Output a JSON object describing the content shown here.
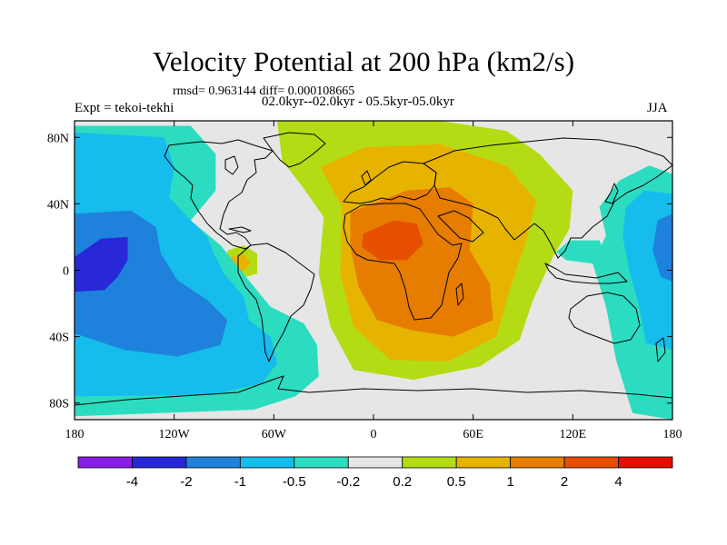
{
  "figure": {
    "title": "Velocity Potential at 200 hPa (km2/s)",
    "stats": "rmsd= 0.963144 diff= 0.000108665",
    "period": "02.0kyr--02.0kyr - 05.5kyr-05.0kyr",
    "experiment": "Expt = tekoi-tekhi",
    "season": "JJA"
  },
  "chart_data": {
    "type": "heatmap",
    "title": "Velocity Potential at 200 hPa (km2/s)",
    "units": "km2/s",
    "xlim": [
      -180,
      180
    ],
    "ylim": [
      -90,
      90
    ],
    "x_ticks": [
      {
        "value": -180,
        "label": "180"
      },
      {
        "value": -120,
        "label": "120W"
      },
      {
        "value": -60,
        "label": "60W"
      },
      {
        "value": 0,
        "label": "0"
      },
      {
        "value": 60,
        "label": "60E"
      },
      {
        "value": 120,
        "label": "120E"
      },
      {
        "value": 180,
        "label": "180"
      }
    ],
    "y_ticks": [
      {
        "value": 80,
        "label": "80N"
      },
      {
        "value": 40,
        "label": "40N"
      },
      {
        "value": 0,
        "label": "0"
      },
      {
        "value": -40,
        "label": "40S"
      },
      {
        "value": -80,
        "label": "80S"
      }
    ],
    "contour_levels": [
      -4,
      -2,
      -1,
      -0.5,
      -0.2,
      0.2,
      0.5,
      1,
      2,
      4
    ],
    "colorbar_labels": [
      "-4",
      "-2",
      "-1",
      "-0.5",
      "-0.2",
      "0.2",
      "0.5",
      "1",
      "2",
      "4"
    ],
    "colorbar_colors": [
      "#8a1de6",
      "#2828d8",
      "#1e82dc",
      "#16bcec",
      "#2cdcc0",
      "#e6e6e6",
      "#b4dc14",
      "#e6b400",
      "#e67d00",
      "#e64e00",
      "#e60e00"
    ],
    "field_regions": [
      {
        "level_bin": 5,
        "polygon": [
          [
            -180,
            90
          ],
          [
            180,
            90
          ],
          [
            180,
            -90
          ],
          [
            -180,
            -90
          ]
        ]
      },
      {
        "level_bin": 6,
        "polygon": [
          [
            -58,
            90
          ],
          [
            40,
            90
          ],
          [
            80,
            84
          ],
          [
            100,
            70
          ],
          [
            120,
            48
          ],
          [
            118,
            25
          ],
          [
            108,
            8
          ],
          [
            96,
            -18
          ],
          [
            88,
            -42
          ],
          [
            64,
            -58
          ],
          [
            24,
            -66
          ],
          [
            -12,
            -60
          ],
          [
            -26,
            -34
          ],
          [
            -33,
            -2
          ],
          [
            -30,
            32
          ],
          [
            -44,
            52
          ],
          [
            -55,
            66
          ]
        ]
      },
      {
        "level_bin": 7,
        "polygon": [
          [
            -32,
            62
          ],
          [
            -5,
            74
          ],
          [
            40,
            76
          ],
          [
            80,
            63
          ],
          [
            98,
            42
          ],
          [
            92,
            18
          ],
          [
            82,
            -12
          ],
          [
            74,
            -40
          ],
          [
            45,
            -55
          ],
          [
            10,
            -54
          ],
          [
            -12,
            -34
          ],
          [
            -20,
            -2
          ],
          [
            -19,
            38
          ]
        ]
      },
      {
        "level_bin": 8,
        "polygon": [
          [
            -14,
            35
          ],
          [
            20,
            48
          ],
          [
            46,
            50
          ],
          [
            60,
            40
          ],
          [
            58,
            12
          ],
          [
            70,
            -8
          ],
          [
            72,
            -30
          ],
          [
            48,
            -40
          ],
          [
            22,
            -36
          ],
          [
            2,
            -30
          ],
          [
            -9,
            -10
          ],
          [
            -14,
            15
          ]
        ]
      },
      {
        "level_bin": 9,
        "polygon": [
          [
            -6,
            22
          ],
          [
            12,
            30
          ],
          [
            26,
            28
          ],
          [
            30,
            16
          ],
          [
            20,
            6
          ],
          [
            4,
            6
          ],
          [
            -7,
            14
          ]
        ]
      },
      {
        "level_bin": 6,
        "polygon": [
          [
            -88,
            12
          ],
          [
            -78,
            15
          ],
          [
            -70,
            10
          ],
          [
            -70,
            -2
          ],
          [
            -80,
            -5
          ],
          [
            -88,
            2
          ]
        ]
      },
      {
        "level_bin": 7,
        "polygon": [
          [
            -86,
            8
          ],
          [
            -78,
            10
          ],
          [
            -74,
            4
          ],
          [
            -80,
            -2
          ],
          [
            -86,
            1
          ]
        ]
      },
      {
        "level_bin": 4,
        "polygon": [
          [
            -180,
            87
          ],
          [
            -110,
            87
          ],
          [
            -95,
            70
          ],
          [
            -95,
            48
          ],
          [
            -110,
            30
          ],
          [
            -92,
            15
          ],
          [
            -76,
            -5
          ],
          [
            -62,
            -22
          ],
          [
            -42,
            -32
          ],
          [
            -34,
            -45
          ],
          [
            -33,
            -64
          ],
          [
            -47,
            -76
          ],
          [
            -72,
            -84
          ],
          [
            -180,
            -88
          ]
        ]
      },
      {
        "level_bin": 3,
        "polygon": [
          [
            -180,
            83
          ],
          [
            -126,
            80
          ],
          [
            -120,
            62
          ],
          [
            -123,
            44
          ],
          [
            -112,
            32
          ],
          [
            -100,
            20
          ],
          [
            -96,
            10
          ],
          [
            -90,
            -2
          ],
          [
            -78,
            -16
          ],
          [
            -75,
            -30
          ],
          [
            -62,
            -40
          ],
          [
            -58,
            -56
          ],
          [
            -67,
            -68
          ],
          [
            -96,
            -75
          ],
          [
            -180,
            -76
          ]
        ]
      },
      {
        "level_bin": 2,
        "polygon": [
          [
            -180,
            34
          ],
          [
            -146,
            36
          ],
          [
            -131,
            26
          ],
          [
            -128,
            10
          ],
          [
            -118,
            -6
          ],
          [
            -100,
            -18
          ],
          [
            -88,
            -30
          ],
          [
            -92,
            -45
          ],
          [
            -118,
            -52
          ],
          [
            -150,
            -48
          ],
          [
            -180,
            -38
          ]
        ]
      },
      {
        "level_bin": 1,
        "polygon": [
          [
            -180,
            8
          ],
          [
            -164,
            19
          ],
          [
            -148,
            20
          ],
          [
            -148,
            6
          ],
          [
            -154,
            -4
          ],
          [
            -162,
            -12
          ],
          [
            -180,
            -13
          ]
        ]
      },
      {
        "level_bin": 4,
        "polygon": [
          [
            180,
            58
          ],
          [
            166,
            63
          ],
          [
            148,
            54
          ],
          [
            136,
            38
          ],
          [
            140,
            21
          ],
          [
            132,
            4
          ],
          [
            140,
            -22
          ],
          [
            146,
            -54
          ],
          [
            156,
            -86
          ],
          [
            180,
            -90
          ]
        ]
      },
      {
        "level_bin": 3,
        "polygon": [
          [
            180,
            46
          ],
          [
            163,
            48
          ],
          [
            152,
            38
          ],
          [
            150,
            20
          ],
          [
            154,
            0
          ],
          [
            160,
            -22
          ],
          [
            164,
            -44
          ],
          [
            180,
            -48
          ]
        ]
      },
      {
        "level_bin": 2,
        "polygon": [
          [
            180,
            34
          ],
          [
            171,
            30
          ],
          [
            168,
            12
          ],
          [
            173,
            -4
          ],
          [
            180,
            -7
          ]
        ]
      },
      {
        "level_bin": 4,
        "polygon": [
          [
            118,
            18
          ],
          [
            136,
            18
          ],
          [
            140,
            8
          ],
          [
            132,
            4
          ],
          [
            116,
            6
          ],
          [
            110,
            11
          ]
        ]
      }
    ]
  }
}
